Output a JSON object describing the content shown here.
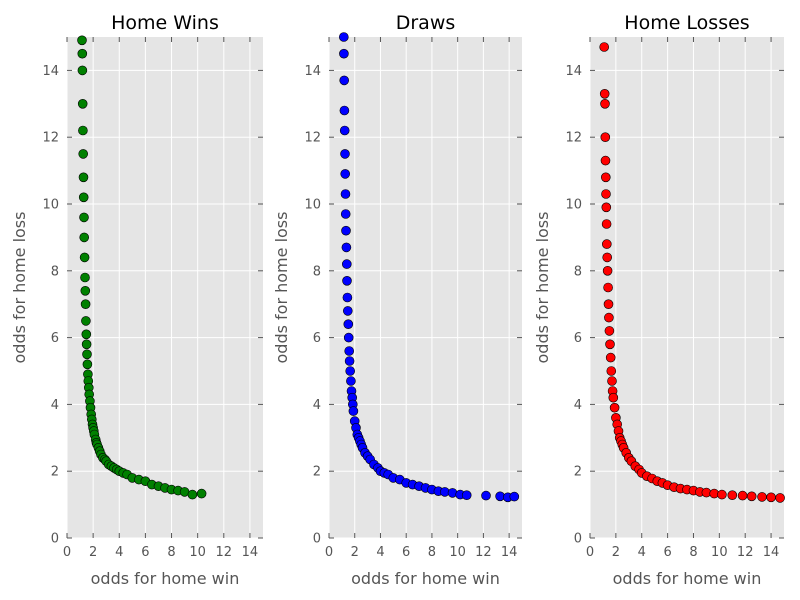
{
  "chart_data": [
    {
      "type": "scatter",
      "title": "Home Wins",
      "xlabel": "odds for home win",
      "ylabel": "odds for home loss",
      "xlim": [
        0,
        15
      ],
      "ylim": [
        0,
        15
      ],
      "xticks": [
        0,
        2,
        4,
        6,
        8,
        10,
        12,
        14
      ],
      "yticks": [
        0,
        2,
        4,
        6,
        8,
        10,
        12,
        14
      ],
      "grid": true,
      "color": "#008000",
      "series": [
        {
          "x": [
            1.15,
            1.17,
            1.18,
            1.2,
            1.22,
            1.24,
            1.26,
            1.28,
            1.3,
            1.32,
            1.35,
            1.38,
            1.4,
            1.42,
            1.45,
            1.48,
            1.5,
            1.53,
            1.56,
            1.6,
            1.63,
            1.67,
            1.7,
            1.75,
            1.8,
            1.85,
            1.9,
            1.95,
            2.0,
            2.05,
            2.1,
            2.2,
            2.25,
            2.3,
            2.4,
            2.5,
            2.6,
            2.75,
            2.9,
            3.0,
            3.2,
            3.4,
            3.6,
            3.8,
            4.0,
            4.3,
            4.6,
            5.0,
            5.5,
            6.0,
            6.5,
            7.0,
            7.5,
            8.0,
            8.5,
            9.0,
            9.6,
            10.3
          ],
          "y": [
            14.9,
            14.5,
            14.0,
            13.0,
            12.2,
            11.5,
            10.8,
            10.2,
            9.6,
            9.0,
            8.4,
            7.8,
            7.4,
            7.0,
            6.5,
            6.1,
            5.8,
            5.5,
            5.2,
            4.9,
            4.7,
            4.5,
            4.3,
            4.1,
            3.9,
            3.7,
            3.55,
            3.4,
            3.3,
            3.2,
            3.1,
            2.95,
            2.85,
            2.8,
            2.7,
            2.6,
            2.5,
            2.4,
            2.35,
            2.3,
            2.2,
            2.15,
            2.1,
            2.05,
            2.0,
            1.95,
            1.9,
            1.8,
            1.75,
            1.7,
            1.6,
            1.55,
            1.5,
            1.45,
            1.42,
            1.38,
            1.3,
            1.33
          ]
        }
      ]
    },
    {
      "type": "scatter",
      "title": "Draws",
      "xlabel": "odds for home win",
      "ylabel": "odds for home loss",
      "xlim": [
        0,
        15
      ],
      "ylim": [
        0,
        15
      ],
      "xticks": [
        0,
        2,
        4,
        6,
        8,
        10,
        12,
        14
      ],
      "yticks": [
        0,
        2,
        4,
        6,
        8,
        10,
        12,
        14
      ],
      "grid": true,
      "color": "#0000ff",
      "series": [
        {
          "x": [
            1.15,
            1.16,
            1.18,
            1.2,
            1.22,
            1.24,
            1.26,
            1.28,
            1.3,
            1.32,
            1.35,
            1.38,
            1.4,
            1.43,
            1.46,
            1.5,
            1.53,
            1.57,
            1.6,
            1.65,
            1.7,
            1.75,
            1.8,
            1.85,
            1.9,
            2.0,
            2.1,
            2.2,
            2.3,
            2.4,
            2.5,
            2.6,
            2.8,
            3.0,
            3.2,
            3.5,
            3.8,
            4.0,
            4.3,
            4.6,
            5.0,
            5.5,
            6.0,
            6.5,
            7.0,
            7.5,
            8.0,
            8.5,
            9.0,
            9.6,
            10.2,
            10.7,
            12.2,
            13.3,
            13.9,
            14.4
          ],
          "y": [
            15.0,
            14.5,
            13.7,
            12.8,
            12.2,
            11.5,
            10.9,
            10.3,
            9.7,
            9.2,
            8.7,
            8.2,
            7.7,
            7.2,
            6.8,
            6.4,
            6.0,
            5.6,
            5.3,
            5.0,
            4.7,
            4.4,
            4.2,
            4.0,
            3.8,
            3.5,
            3.3,
            3.1,
            3.0,
            2.9,
            2.8,
            2.7,
            2.55,
            2.45,
            2.35,
            2.2,
            2.1,
            2.0,
            1.95,
            1.9,
            1.8,
            1.75,
            1.65,
            1.6,
            1.55,
            1.5,
            1.45,
            1.4,
            1.38,
            1.35,
            1.3,
            1.28,
            1.27,
            1.25,
            1.22,
            1.24
          ]
        }
      ]
    },
    {
      "type": "scatter",
      "title": "Home Losses",
      "xlabel": "odds for home win",
      "ylabel": "odds for home loss",
      "xlim": [
        0,
        15
      ],
      "ylim": [
        0,
        15
      ],
      "xticks": [
        0,
        2,
        4,
        6,
        8,
        10,
        12,
        14
      ],
      "yticks": [
        0,
        2,
        4,
        6,
        8,
        10,
        12,
        14
      ],
      "grid": true,
      "color": "#ff0000",
      "series": [
        {
          "x": [
            1.1,
            1.14,
            1.16,
            1.18,
            1.2,
            1.22,
            1.24,
            1.26,
            1.28,
            1.3,
            1.33,
            1.36,
            1.4,
            1.43,
            1.46,
            1.5,
            1.55,
            1.6,
            1.65,
            1.7,
            1.75,
            1.8,
            1.9,
            2.0,
            2.1,
            2.2,
            2.3,
            2.4,
            2.5,
            2.6,
            2.8,
            3.0,
            3.2,
            3.5,
            3.8,
            4.0,
            4.4,
            4.8,
            5.2,
            5.6,
            6.0,
            6.5,
            7.0,
            7.5,
            8.0,
            8.5,
            9.0,
            9.6,
            10.2,
            11.0,
            11.8,
            12.5,
            13.3,
            14.0,
            14.7
          ],
          "y": [
            14.7,
            13.3,
            13.0,
            12.0,
            11.3,
            10.8,
            10.3,
            9.9,
            9.4,
            8.8,
            8.4,
            8.0,
            7.5,
            7.0,
            6.6,
            6.2,
            5.8,
            5.4,
            5.0,
            4.7,
            4.4,
            4.2,
            3.9,
            3.6,
            3.4,
            3.2,
            3.0,
            2.9,
            2.8,
            2.7,
            2.55,
            2.4,
            2.3,
            2.15,
            2.05,
            1.95,
            1.85,
            1.78,
            1.7,
            1.65,
            1.58,
            1.52,
            1.48,
            1.45,
            1.42,
            1.38,
            1.36,
            1.33,
            1.3,
            1.28,
            1.27,
            1.25,
            1.23,
            1.22,
            1.2
          ]
        }
      ]
    }
  ]
}
